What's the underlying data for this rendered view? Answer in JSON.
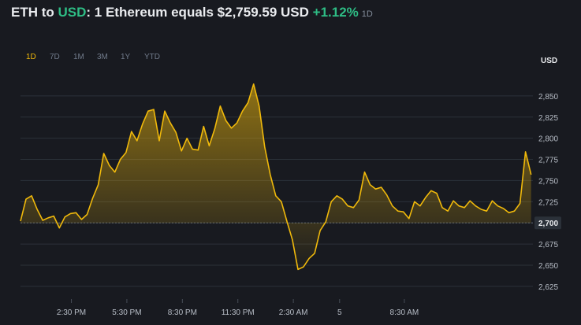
{
  "header": {
    "base": "ETH",
    "to": " to ",
    "quote": "USD",
    "sentence": ": 1 Ethereum equals $2,759.59 USD ",
    "change": "+1.12%",
    "period": "1D"
  },
  "ranges": [
    "1D",
    "7D",
    "1M",
    "3M",
    "1Y",
    "YTD"
  ],
  "active_range": "1D",
  "colors": {
    "line": "#f0b90b",
    "positive": "#2ebd85",
    "background": "#181a20"
  },
  "chart_data": {
    "type": "area",
    "ylabel": "USD",
    "ylim": [
      2610,
      2875
    ],
    "yticks": [
      2850,
      2825,
      2800,
      2775,
      2750,
      2725,
      2700,
      2675,
      2650,
      2625
    ],
    "ytick_labels": [
      "2,850",
      "2,825",
      "2,800",
      "2,775",
      "2,750",
      "2,725",
      "2,700",
      "2,675",
      "2,650",
      "2,625"
    ],
    "baseline": 2700,
    "baseline_label": "2,700",
    "xlim": [
      0,
      27.7
    ],
    "xticks": [
      {
        "t": 2.75,
        "label": "2:30 PM"
      },
      {
        "t": 5.75,
        "label": "5:30 PM"
      },
      {
        "t": 8.75,
        "label": "8:30 PM"
      },
      {
        "t": 11.75,
        "label": "11:30 PM"
      },
      {
        "t": 14.75,
        "label": "2:30 AM"
      },
      {
        "t": 17.25,
        "label": "5"
      },
      {
        "t": 20.75,
        "label": "8:30 AM"
      }
    ],
    "series": [
      {
        "x": [
          0,
          0.3,
          0.6,
          0.9,
          1.2,
          1.5,
          1.8,
          2.1,
          2.4,
          2.7,
          3.0,
          3.3,
          3.6,
          3.9,
          4.2,
          4.5,
          4.8,
          5.1,
          5.4,
          5.7,
          6.0,
          6.3,
          6.6,
          6.9,
          7.2,
          7.5,
          7.8,
          8.1,
          8.4,
          8.7,
          9.0,
          9.3,
          9.6,
          9.9,
          10.2,
          10.5,
          10.8,
          11.1,
          11.4,
          11.7,
          12.0,
          12.3,
          12.6,
          12.9,
          13.2,
          13.5,
          13.8,
          14.1,
          14.4,
          14.7,
          15.0,
          15.3,
          15.6,
          15.9,
          16.2,
          16.5,
          16.8,
          17.1,
          17.4,
          17.7,
          18.0,
          18.3,
          18.6,
          18.9,
          19.2,
          19.5,
          19.8,
          20.1,
          20.4,
          20.7,
          21.0,
          21.3,
          21.6,
          21.9,
          22.2,
          22.5,
          22.8,
          23.1,
          23.4,
          23.7,
          24.0,
          24.3,
          24.6,
          24.9,
          25.2,
          25.5,
          25.8,
          26.1,
          26.4,
          26.7,
          27.0,
          27.3,
          27.6
        ],
        "y": [
          2702,
          2728,
          2732,
          2716,
          2703,
          2706,
          2708,
          2694,
          2707,
          2711,
          2712,
          2704,
          2710,
          2729,
          2745,
          2782,
          2768,
          2760,
          2775,
          2783,
          2808,
          2797,
          2817,
          2832,
          2834,
          2797,
          2832,
          2818,
          2807,
          2785,
          2800,
          2787,
          2786,
          2814,
          2791,
          2811,
          2838,
          2821,
          2812,
          2818,
          2832,
          2842,
          2864,
          2838,
          2790,
          2757,
          2732,
          2725,
          2702,
          2680,
          2645,
          2648,
          2658,
          2664,
          2691,
          2701,
          2725,
          2732,
          2728,
          2720,
          2718,
          2727,
          2760,
          2745,
          2740,
          2742,
          2733,
          2720,
          2714,
          2713,
          2705,
          2725,
          2720,
          2730,
          2738,
          2735,
          2718,
          2714,
          2726,
          2720,
          2718,
          2726,
          2720,
          2716,
          2714,
          2726,
          2720,
          2717,
          2712,
          2714,
          2723,
          2784,
          2757
        ]
      }
    ]
  }
}
